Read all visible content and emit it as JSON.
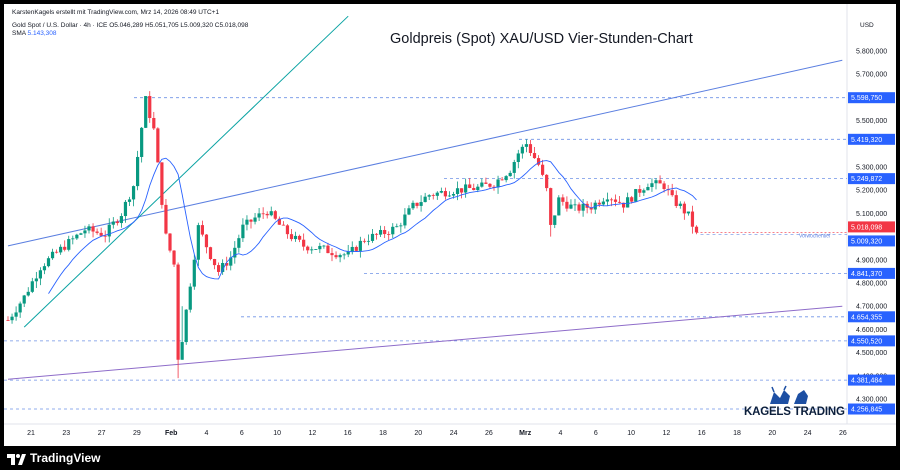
{
  "header": {
    "credit": "KarstenKagels erstellt mit TradingView.com, Mrz 14, 2026 08:49 UTC+1",
    "symbol_line": "Gold Spot / U.S. Dollar · 4h · ICE",
    "ohlc": {
      "o": "O5.046,289",
      "h": "H5.051,705",
      "l": "L5.009,320",
      "c": "C5.018,098"
    },
    "sma_label": "SMA",
    "sma_value": "5.143,308"
  },
  "title": "Goldpreis (Spot) XAU/USD Vier-Stunden-Chart",
  "currency": "USD",
  "logo_text": "KAGELS TRADING",
  "footer_brand": "TradingView",
  "colors": {
    "up": "#089981",
    "down": "#f23645",
    "sma": "#2962ff",
    "trend_blue": "#5b7fe0",
    "trend_purple": "#8e6cc9",
    "teal_line": "#0aa3a3",
    "level_line": "#6f92e6",
    "badge": "#2962ff",
    "badge_red": "#f23645"
  },
  "chart_data": {
    "type": "candlestick",
    "title": "Goldpreis (Spot) XAU/USD Vier-Stunden-Chart",
    "symbol": "XAU/USD",
    "timeframe": "4h",
    "ylim": [
      4200,
      5950
    ],
    "y_ticks": [
      "4.300,000",
      "4.400,000",
      "4.500,000",
      "4.600,000",
      "4.700,000",
      "4.800,000",
      "4.900,000",
      "5.100,000",
      "5.200,000",
      "5.300,000",
      "5.500,000",
      "5.700,000",
      "5.800,000"
    ],
    "x_ticks": [
      "21",
      "23",
      "27",
      "29",
      "Feb",
      "4",
      "6",
      "10",
      "12",
      "16",
      "18",
      "20",
      "24",
      "26",
      "Mrz",
      "4",
      "6",
      "10",
      "12",
      "16",
      "18",
      "20",
      "24",
      "26"
    ],
    "levels": [
      {
        "value": 5598.75,
        "label": "5.598,750"
      },
      {
        "value": 5419.32,
        "label": "5.419,320"
      },
      {
        "value": 5249.872,
        "label": "5.249,872"
      },
      {
        "value": 4841.37,
        "label": "4.841,370"
      },
      {
        "value": 4654.355,
        "label": "4.654,355"
      },
      {
        "value": 4550.52,
        "label": "4.550,520"
      },
      {
        "value": 4381.484,
        "label": "4.381,484"
      },
      {
        "value": 4256.845,
        "label": "4.256,845"
      }
    ],
    "current": {
      "price": 5018.098,
      "label": "5.018,098"
    },
    "prev_close": {
      "value": 5009.32,
      "label": "5.009,320",
      "tag": "Vorwochentief"
    },
    "sma": {
      "period": "SMA",
      "last": "5.143,308"
    },
    "trendlines": [
      {
        "name": "upper-trend",
        "from": [
          0,
          4960
        ],
        "to": [
          206,
          5760
        ]
      },
      {
        "name": "lower-trend",
        "from": [
          0,
          4385
        ],
        "to": [
          206,
          4700
        ]
      },
      {
        "name": "steep-trend",
        "from": [
          4,
          4610
        ],
        "to": [
          84,
          5950
        ]
      }
    ],
    "anchors": [
      [
        0,
        4640
      ],
      [
        4,
        4740
      ],
      [
        8,
        4870
      ],
      [
        14,
        4960
      ],
      [
        19,
        5030
      ],
      [
        24,
        5010
      ],
      [
        28,
        5100
      ],
      [
        31,
        5220
      ],
      [
        33,
        5470
      ],
      [
        34,
        5590
      ],
      [
        36,
        5460
      ],
      [
        39,
        5000
      ],
      [
        41,
        4880
      ],
      [
        42,
        4480
      ],
      [
        43,
        4560
      ],
      [
        45,
        4800
      ],
      [
        47,
        5040
      ],
      [
        50,
        4920
      ],
      [
        52,
        4850
      ],
      [
        55,
        4910
      ],
      [
        58,
        5040
      ],
      [
        61,
        5080
      ],
      [
        64,
        5110
      ],
      [
        68,
        5030
      ],
      [
        70,
        5000
      ],
      [
        73,
        4960
      ],
      [
        77,
        4950
      ],
      [
        81,
        4930
      ],
      [
        84,
        4920
      ],
      [
        88,
        4990
      ],
      [
        92,
        5010
      ],
      [
        96,
        5040
      ],
      [
        100,
        5130
      ],
      [
        104,
        5180
      ],
      [
        110,
        5200
      ],
      [
        116,
        5210
      ],
      [
        120,
        5230
      ],
      [
        124,
        5290
      ],
      [
        126,
        5360
      ],
      [
        128,
        5400
      ],
      [
        131,
        5310
      ],
      [
        133,
        5200
      ],
      [
        134,
        5040
      ],
      [
        136,
        5160
      ],
      [
        140,
        5120
      ],
      [
        144,
        5130
      ],
      [
        148,
        5180
      ],
      [
        152,
        5140
      ],
      [
        156,
        5200
      ],
      [
        158,
        5230
      ],
      [
        162,
        5220
      ],
      [
        164,
        5160
      ],
      [
        166,
        5130
      ],
      [
        168,
        5090
      ],
      [
        170,
        5010
      ]
    ]
  }
}
